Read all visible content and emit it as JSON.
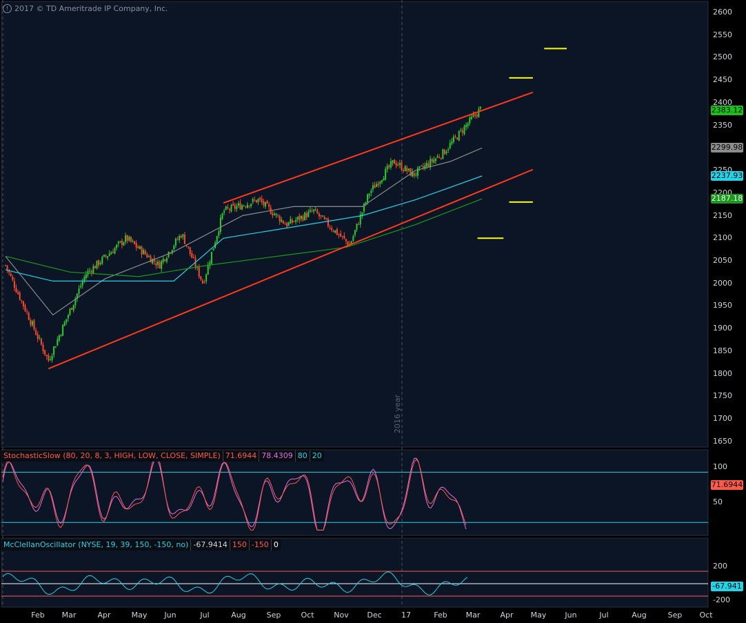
{
  "copyright": "2017 © TD Ameritrade IP Company, Inc.",
  "price_axis": {
    "ticks": [
      "2600",
      "2550",
      "2500",
      "2450",
      "2400",
      "2350",
      "2300",
      "2250",
      "2200",
      "2150",
      "2100",
      "2050",
      "2000",
      "1950",
      "1900",
      "1850",
      "1800",
      "1750",
      "1700",
      "1650"
    ]
  },
  "price_tags": [
    {
      "label": "2383.12",
      "bg": "#18c218",
      "fg": "#000000",
      "value": 2383.12
    },
    {
      "label": "2299.98",
      "bg": "#8c8c8c",
      "fg": "#000000",
      "value": 2299.98
    },
    {
      "label": "2237.93",
      "bg": "#22d4e8",
      "fg": "#000000",
      "value": 2237.93
    },
    {
      "label": "2187.18",
      "bg": "#1a9a1a",
      "fg": "#ffffff",
      "value": 2187.18
    }
  ],
  "year_marker": "2016 year",
  "months": [
    "Feb",
    "Mar",
    "Apr",
    "May",
    "Jun",
    "Jul",
    "Aug",
    "Sep",
    "Oct",
    "Nov",
    "Dec",
    "17",
    "Feb",
    "Mar",
    "Apr",
    "May",
    "Jun",
    "Jul",
    "Aug",
    "Sep",
    "Oct"
  ],
  "stochastic": {
    "name": "StochasticSlow (80, 20, 8, 3, HIGH, LOW, CLOSE, SIMPLE)",
    "k": "71.6944",
    "d": "78.4309",
    "ob": "80",
    "os": "20",
    "axis": [
      "100",
      "50"
    ],
    "tag": "71.6944",
    "colors": {
      "name": "#ff5a4a",
      "k": "#ff5a4a",
      "d": "#e070e0",
      "ob": "#22d4e8",
      "os": "#22d4e8"
    }
  },
  "mcclellan": {
    "name": "McClellanOscillator (NYSE, 19, 39, 150, -150, no)",
    "value": "-67.9414",
    "upper": "150",
    "lower": "-150",
    "zero": "0",
    "axis": [
      "200",
      "-200"
    ],
    "tag": "-67.941",
    "colors": {
      "name": "#22d4e8",
      "value": "#d0d4da",
      "upper": "#ff5a4a",
      "lower": "#ff5a4a",
      "zero": "#ffffff"
    }
  },
  "chart_data": {
    "type": "line",
    "title": "",
    "x_range": [
      "2016-01",
      "2017-10"
    ],
    "ylim": [
      1625,
      2625
    ],
    "y_ticks": [
      1650,
      1700,
      1750,
      1800,
      1850,
      1900,
      1950,
      2000,
      2050,
      2100,
      2150,
      2200,
      2250,
      2300,
      2350,
      2400,
      2450,
      2500,
      2550,
      2600
    ],
    "grid": false,
    "series": [
      {
        "values_x": [
          "2016-01-04",
          "2016-02-11",
          "2016-03-15",
          "2016-04-20",
          "2016-05-19",
          "2016-06-08",
          "2016-06-27",
          "2016-07-15",
          "2016-08-15",
          "2016-09-09",
          "2016-10-03",
          "2016-11-04",
          "2016-11-21",
          "2016-12-13",
          "2016-12-30",
          "2017-01-26",
          "2017-02-15",
          "2017-03-01"
        ],
        "values": [
          2040,
          1829,
          2020,
          2100,
          2040,
          2110,
          2000,
          2160,
          2185,
          2130,
          2160,
          2085,
          2200,
          2270,
          2240,
          2290,
          2350,
          2390
        ]
      },
      {
        "values_x": [
          "2016-01-04",
          "2016-02-15",
          "2016-04-01",
          "2016-06-01",
          "2016-08-01",
          "2016-09-15",
          "2016-11-15",
          "2017-01-01",
          "2017-02-01",
          "2017-03-01"
        ],
        "values": [
          2060,
          1930,
          2010,
          2070,
          2150,
          2170,
          2170,
          2250,
          2270,
          2299.98
        ]
      },
      {
        "values_x": [
          "2016-01-04",
          "2016-02-15",
          "2016-04-01",
          "2016-06-01",
          "2016-07-15",
          "2016-09-15",
          "2016-11-15",
          "2017-01-01",
          "2017-03-01"
        ],
        "values": [
          2030,
          2005,
          2005,
          2005,
          2100,
          2125,
          2150,
          2185,
          2237.93
        ]
      },
      {
        "values_x": [
          "2016-01-04",
          "2016-03-01",
          "2016-05-01",
          "2016-07-01",
          "2016-09-01",
          "2016-11-01",
          "2017-01-01",
          "2017-03-01"
        ],
        "values": [
          2060,
          2025,
          2015,
          2040,
          2060,
          2080,
          2130,
          2187.18
        ]
      }
    ],
    "channel": {
      "upper": {
        "start": [
          "2016-07-15",
          2178
        ],
        "end": [
          "2017-04-15",
          2423
        ]
      },
      "lower": {
        "start": [
          "2016-02-11",
          1811
        ],
        "end": [
          "2017-04-15",
          2252
        ]
      }
    },
    "targets": [
      {
        "date_from": "2017-03-25",
        "date_to": "2017-04-15",
        "value": 2455
      },
      {
        "date_from": "2017-04-25",
        "date_to": "2017-05-15",
        "value": 2520
      },
      {
        "date_from": "2017-03-25",
        "date_to": "2017-04-15",
        "value": 2180
      },
      {
        "date_from": "2017-02-25",
        "date_to": "2017-03-20",
        "value": 2100
      }
    ]
  }
}
